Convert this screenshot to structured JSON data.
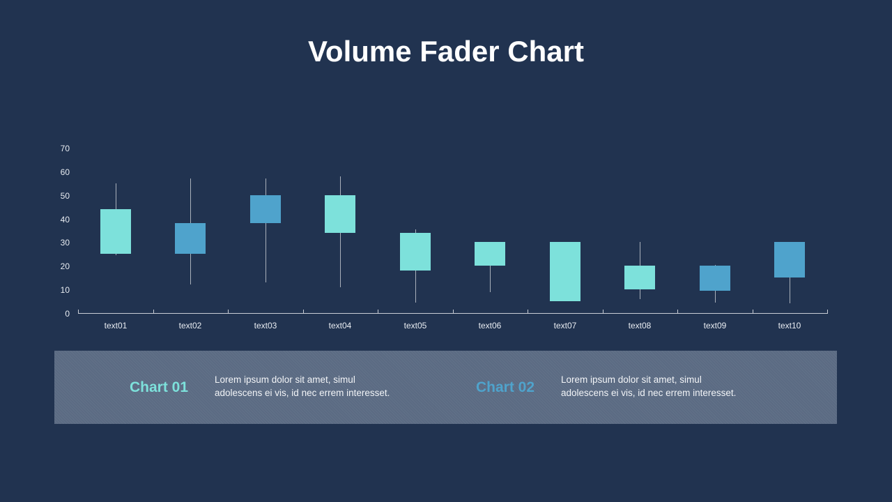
{
  "slide": {
    "title": "Volume Fader Chart"
  },
  "chart_data": {
    "type": "candlestick",
    "title": "Volume Fader Chart",
    "categories": [
      "text01",
      "text02",
      "text03",
      "text04",
      "text05",
      "text06",
      "text07",
      "text08",
      "text09",
      "text10"
    ],
    "y_ticks": [
      0,
      10,
      20,
      30,
      40,
      50,
      60,
      70
    ],
    "ylim": [
      0,
      70
    ],
    "grid": false,
    "legend": "none",
    "series": [
      {
        "name": "volume-fader-candles",
        "points": [
          {
            "category": "text01",
            "box_low": 25,
            "box_high": 44,
            "low": 24.5,
            "high": 55,
            "color": "teal"
          },
          {
            "category": "text02",
            "box_low": 25,
            "box_high": 38,
            "low": 12,
            "high": 57,
            "color": "blue"
          },
          {
            "category": "text03",
            "box_low": 38,
            "box_high": 50,
            "low": 13,
            "high": 57,
            "color": "blue"
          },
          {
            "category": "text04",
            "box_low": 34,
            "box_high": 50,
            "low": 11,
            "high": 58,
            "color": "teal"
          },
          {
            "category": "text05",
            "box_low": 18,
            "box_high": 34,
            "low": 4.5,
            "high": 35.5,
            "color": "teal"
          },
          {
            "category": "text06",
            "box_low": 20,
            "box_high": 30,
            "low": 9,
            "high": 30,
            "color": "teal"
          },
          {
            "category": "text07",
            "box_low": 5,
            "box_high": 30,
            "low": 5,
            "high": 30,
            "color": "teal"
          },
          {
            "category": "text08",
            "box_low": 10,
            "box_high": 20,
            "low": 6,
            "high": 30,
            "color": "teal"
          },
          {
            "category": "text09",
            "box_low": 9.5,
            "box_high": 20,
            "low": 4.5,
            "high": 20.5,
            "color": "blue"
          },
          {
            "category": "text10",
            "box_low": 15,
            "box_high": 30,
            "low": 4,
            "high": 30,
            "color": "blue"
          }
        ]
      }
    ],
    "colors": {
      "teal": "#7de1db",
      "blue": "#4fa3cc"
    }
  },
  "footer": {
    "items": [
      {
        "label": "Chart 01",
        "accent": "#7de1db",
        "text_lines": [
          "Lorem ipsum dolor sit amet, simul",
          "adolescens ei vis, id nec errem interesset."
        ]
      },
      {
        "label": "Chart 02",
        "accent": "#4fa3cc",
        "text_lines": [
          "Lorem ipsum dolor sit amet, simul",
          "adolescens ei vis, id nec errem interesset."
        ]
      }
    ]
  },
  "theme": {
    "background": "#213350",
    "footer_background": "#5b6b83",
    "axis_color": "#c9ced6",
    "wick_color": "#aab1bb",
    "title_color": "#ffffff",
    "label_color": "#e9edf2"
  }
}
